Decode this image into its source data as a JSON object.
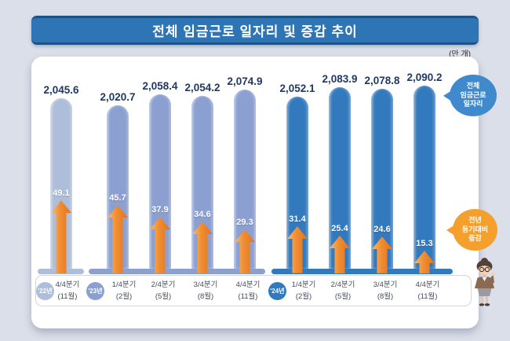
{
  "header": {
    "title": "전체 임금근로 일자리 및 증감 추이",
    "unit": "(만 개)"
  },
  "callouts": {
    "jobs_bubble_lines": [
      "전체",
      "임금근로",
      "일자리"
    ],
    "change_bubble_lines": [
      "전년",
      "동기대비",
      "증감"
    ]
  },
  "chart_data": {
    "type": "bar",
    "title": "전체 임금근로 일자리 및 증감 추이",
    "unit": "만 개",
    "grid": false,
    "legend_position": "right-callouts",
    "baseline_truncated": true,
    "categories": [
      "'22년 4/4분기 (11월)",
      "'23년 1/4분기 (2월)",
      "2/4분기 (5월)",
      "3/4분기 (8월)",
      "4/4분기 (11월)",
      "'24년 1/4분기 (2월)",
      "2/4분기 (5월)",
      "3/4분기 (8월)",
      "4/4분기 (11월)"
    ],
    "x_ticks": [
      {
        "year": "'22년",
        "quarter": "4/4분기",
        "month": "(11월)",
        "group": 0
      },
      {
        "year": null,
        "quarter": "1/4분기",
        "month": "(2월)",
        "group": 1,
        "year_badge": "'23년"
      },
      {
        "year": null,
        "quarter": "2/4분기",
        "month": "(5월)",
        "group": 1
      },
      {
        "year": null,
        "quarter": "3/4분기",
        "month": "(8월)",
        "group": 1
      },
      {
        "year": null,
        "quarter": "4/4분기",
        "month": "(11월)",
        "group": 1
      },
      {
        "year": null,
        "quarter": "1/4분기",
        "month": "(2월)",
        "group": 2,
        "year_badge": "'24년"
      },
      {
        "year": null,
        "quarter": "2/4분기",
        "month": "(5월)",
        "group": 2
      },
      {
        "year": null,
        "quarter": "3/4분기",
        "month": "(8월)",
        "group": 2
      },
      {
        "year": null,
        "quarter": "4/4분기",
        "month": "(11월)",
        "group": 2
      }
    ],
    "year_badges": [
      "'22년",
      "'23년",
      "'24년"
    ],
    "series": [
      {
        "name": "전체 임금근로 일자리",
        "values": [
          2045.6,
          2020.7,
          2058.4,
          2054.2,
          2074.9,
          2052.1,
          2083.9,
          2078.8,
          2090.2
        ]
      },
      {
        "name": "전년 동기대비 증감",
        "values": [
          49.1,
          45.7,
          37.9,
          34.6,
          29.3,
          31.4,
          25.4,
          24.6,
          15.3
        ]
      }
    ],
    "colors": {
      "group_bars": [
        "#aebdd9",
        "#8b9fd0",
        "#3379bd"
      ],
      "arrow_main": "#f08d33",
      "value_label": "#203864",
      "jobs_bubble": "#4189cd",
      "change_bubble": "#f5a02d",
      "banner": "#2e75b6"
    }
  }
}
